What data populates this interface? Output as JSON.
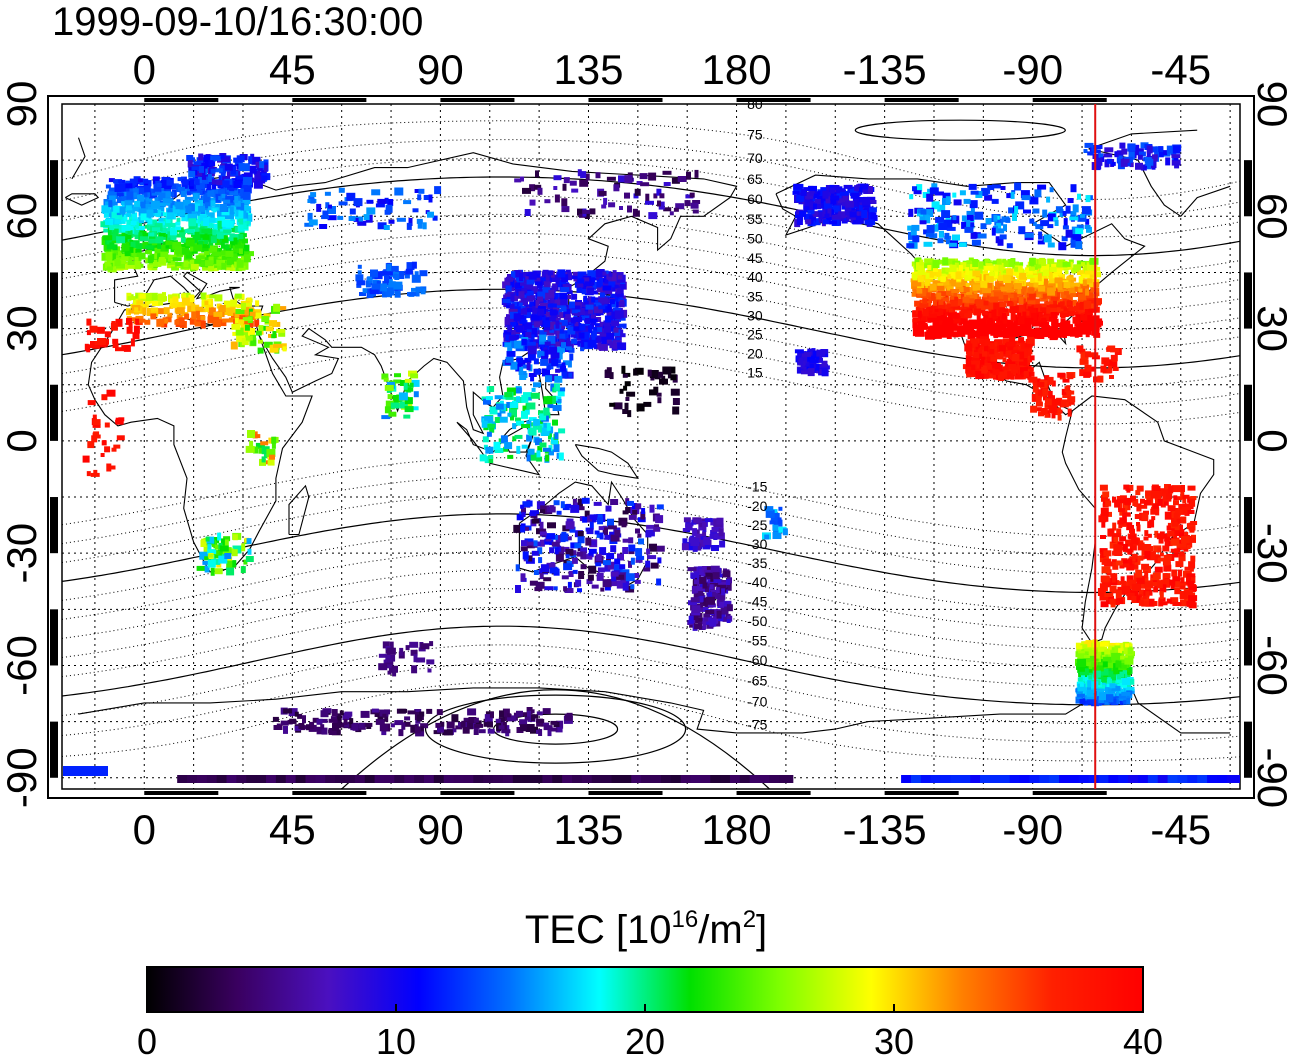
{
  "timestamp": "1999-09-10/16:30:00",
  "map": {
    "top_axis_labels": [
      "0",
      "45",
      "90",
      "135",
      "180",
      "-135",
      "-90",
      "-45"
    ],
    "bottom_axis_labels": [
      "0",
      "45",
      "90",
      "135",
      "180",
      "-135",
      "-90",
      "-45"
    ],
    "left_axis_labels": [
      "90",
      "60",
      "30",
      "0",
      "-30",
      "-60",
      "-90"
    ],
    "right_axis_labels": [
      "90",
      "60",
      "30",
      "0",
      "-30",
      "-60",
      "-90"
    ],
    "lon_range": [
      -25,
      333
    ],
    "lat_range": [
      -93,
      90
    ],
    "graticule_step_deg": 15,
    "magnetic_contour_labels": [
      "80",
      "75",
      "70",
      "65",
      "60",
      "55",
      "50",
      "45",
      "40",
      "35",
      "30",
      "25",
      "20",
      "15",
      "-15",
      "-20",
      "-25",
      "-30",
      "-35",
      "-40",
      "-45",
      "-50",
      "-55",
      "-60",
      "-65",
      "-70",
      "-75"
    ],
    "terminator_line_lon": -71,
    "terminator_color": "#e01010"
  },
  "colorbar": {
    "title_main": "TEC  [10",
    "title_exp1": "16",
    "title_mid": "/m",
    "title_exp2": "2",
    "title_end": "]",
    "tick_labels": [
      "0",
      "10",
      "20",
      "30",
      "40"
    ],
    "min": 0,
    "max": 40,
    "colors": [
      "#000000",
      "#3a0060",
      "#4b10c0",
      "#0000ff",
      "#0070ff",
      "#00ffff",
      "#00e000",
      "#80ff00",
      "#ffff00",
      "#ff8000",
      "#ff2000",
      "#ff0000"
    ]
  }
}
